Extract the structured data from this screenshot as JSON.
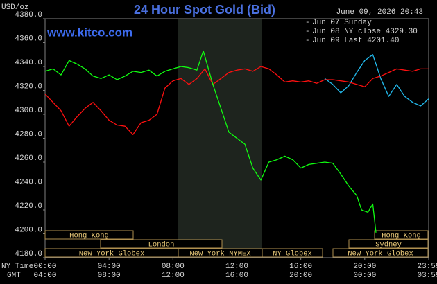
{
  "chart_data": {
    "type": "line",
    "title": "24 Hour Spot Gold (Bid)",
    "watermark": "www.kitco.com",
    "timestamp": "June 09, 2026 20:43",
    "y_label": "USD/oz",
    "x_label": "NY Time",
    "x2_label": "GMT",
    "xlim": [
      0,
      24
    ],
    "ylim": [
      4180,
      4380
    ],
    "xticks": [
      {
        "value": 0,
        "label": "00:00"
      },
      {
        "value": 4,
        "label": "04:00"
      },
      {
        "value": 8,
        "label": "08:00"
      },
      {
        "value": 12,
        "label": "12:00"
      },
      {
        "value": 16,
        "label": "16:00"
      },
      {
        "value": 20,
        "label": "20:00"
      },
      {
        "value": 24,
        "label": "23:59"
      }
    ],
    "x2ticks": [
      {
        "value": 0,
        "label": "04:00"
      },
      {
        "value": 4,
        "label": "08:00"
      },
      {
        "value": 8,
        "label": "12:00"
      },
      {
        "value": 12,
        "label": "16:00"
      },
      {
        "value": 16,
        "label": "20:00"
      },
      {
        "value": 20,
        "label": "00:00"
      },
      {
        "value": 24,
        "label": "03:59"
      }
    ],
    "yticks": [
      {
        "value": 4180,
        "label": "4180.0"
      },
      {
        "value": 4200,
        "label": "4200.0"
      },
      {
        "value": 4220,
        "label": "4220.0"
      },
      {
        "value": 4240,
        "label": "4240.0"
      },
      {
        "value": 4260,
        "label": "4260.0"
      },
      {
        "value": 4280,
        "label": "4280.0"
      },
      {
        "value": 4300,
        "label": "4300.0"
      },
      {
        "value": 4320,
        "label": "4320.0"
      },
      {
        "value": 4340,
        "label": "4340.0"
      },
      {
        "value": 4360,
        "label": "4360.0"
      },
      {
        "value": 4380,
        "label": "4380.0"
      }
    ],
    "grid": false,
    "legend": "top-right",
    "sessions": [
      "Hong Kong",
      "London",
      "New York Globex",
      "New York NYMEX",
      "NY Globex",
      "Hong Kong",
      "Sydney",
      "New York Globex"
    ],
    "series": [
      {
        "name": "Jun 07 Sunday",
        "color": "#22bbee",
        "x": [
          17.5,
          18,
          18.5,
          19,
          19.5,
          20,
          20.5,
          21,
          21.5,
          22,
          22.5,
          23,
          23.5,
          24
        ],
        "values": [
          4330,
          4325,
          4318,
          4324,
          4335,
          4345,
          4350,
          4330,
          4315,
          4325,
          4315,
          4310,
          4307,
          4313
        ]
      },
      {
        "name": "Jun 08 NY close 4329.30",
        "color": "#ff1010",
        "x": [
          0,
          0.5,
          1,
          1.5,
          2,
          2.5,
          3,
          3.5,
          4,
          4.5,
          5,
          5.5,
          6,
          6.5,
          7,
          7.5,
          8,
          8.5,
          9,
          9.5,
          10,
          10.5,
          11,
          11.5,
          12,
          12.5,
          13,
          13.5,
          14,
          14.5,
          15,
          15.5,
          16,
          16.5,
          17,
          17.5,
          18,
          18.5,
          19,
          19.5,
          20,
          20.5,
          21,
          21.5,
          22,
          22.5,
          23,
          23.5,
          24
        ],
        "values": [
          4317,
          4310,
          4303,
          4290,
          4298,
          4305,
          4310,
          4303,
          4295,
          4291,
          4290,
          4283,
          4293,
          4295,
          4300,
          4322,
          4328,
          4330,
          4325,
          4330,
          4338,
          4325,
          4330,
          4335,
          4337,
          4338,
          4336,
          4340,
          4338,
          4333,
          4327,
          4328,
          4327,
          4328,
          4326,
          4329,
          4329,
          4328,
          4327,
          4325,
          4323,
          4330,
          4332,
          4335,
          4338,
          4337,
          4336,
          4338,
          4338
        ]
      },
      {
        "name": "Jun 09 Last 4201.40",
        "color": "#10ff10",
        "x": [
          0,
          0.5,
          1,
          1.5,
          2,
          2.5,
          3,
          3.5,
          4,
          4.5,
          5,
          5.5,
          6,
          6.5,
          7,
          7.5,
          8,
          8.5,
          9,
          9.5,
          9.9,
          10.5,
          11,
          11.5,
          12,
          12.5,
          13,
          13.5,
          14,
          14.5,
          15,
          15.5,
          16,
          16.5,
          17,
          17.5,
          18,
          18.5,
          19,
          19.5,
          19.8,
          20.2,
          20.5,
          20.7
        ],
        "values": [
          4336,
          4338,
          4333,
          4345,
          4342,
          4338,
          4332,
          4330,
          4333,
          4329,
          4332,
          4336,
          4335,
          4337,
          4332,
          4336,
          4338,
          4340,
          4339,
          4337,
          4353,
          4325,
          4305,
          4285,
          4280,
          4275,
          4255,
          4245,
          4260,
          4262,
          4265,
          4262,
          4255,
          4258,
          4259,
          4260,
          4259,
          4250,
          4240,
          4232,
          4220,
          4218,
          4225,
          4201
        ]
      }
    ]
  }
}
